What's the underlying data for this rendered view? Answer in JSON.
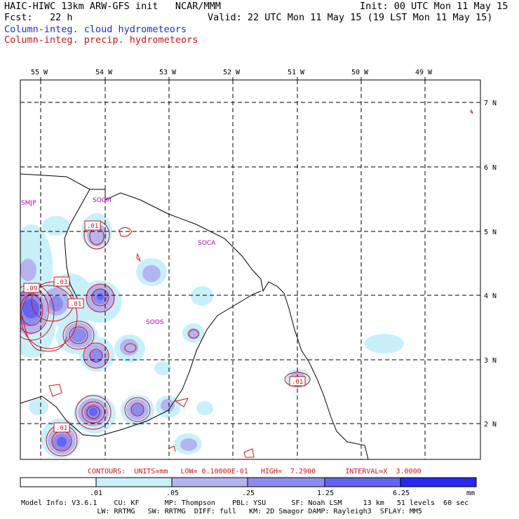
{
  "header": {
    "line1_left": "HAIC-HIWC 13km ARW-GFS init   NCAR/MMM",
    "line1_right": "Init: 00 UTC Mon 11 May 15",
    "line2_left": "Fcst:   22 h",
    "line2_right": "Valid: 22 UTC Mon 11 May 15 (19 LST Mon 11 May 15)",
    "legend_cloud": "Column-integ. cloud hydrometeors",
    "legend_precip": "Column-integ. precip. hydrometeors"
  },
  "axes": {
    "lon_labels": [
      "55 W",
      "54 W",
      "53 W",
      "52 W",
      "51 W",
      "50 W",
      "49 W"
    ],
    "lat_labels": [
      "7 N",
      "6 N",
      "5 N",
      "4 N",
      "3 N",
      "2 N"
    ]
  },
  "place_labels": [
    "SMJP",
    "SOCM",
    "SOCA",
    "SOOS"
  ],
  "contour_labels": [
    ".01",
    ".03",
    ".09",
    ".01",
    ".01",
    ".01",
    ".01"
  ],
  "contours_line": "CONTOURS:  UNITS=mm   LOW= 0.10000E-01   HIGH=  7.2900       INTERVAL=X  3.0000",
  "colorbar": {
    "labels": [
      ".01",
      ".05",
      ".25",
      "1.25",
      "6.25"
    ],
    "unit": "mm",
    "colors": [
      "#ffffff",
      "#c8f0fa",
      "#b4b4f0",
      "#8c8cf0",
      "#6464f0",
      "#2828f0"
    ]
  },
  "model_info": {
    "line1": "Model Info: V3.6.1    CU: KF      MP: Thompson    PBL: YSU      SF: Noah LSM     13 km   51 levels  60 sec",
    "line2": "                  LW: RRTMG   SW: RRTMG  DIFF: full   KM: 2D Smagor DAMP: Rayleigh3  SFLAY: MM5"
  }
}
